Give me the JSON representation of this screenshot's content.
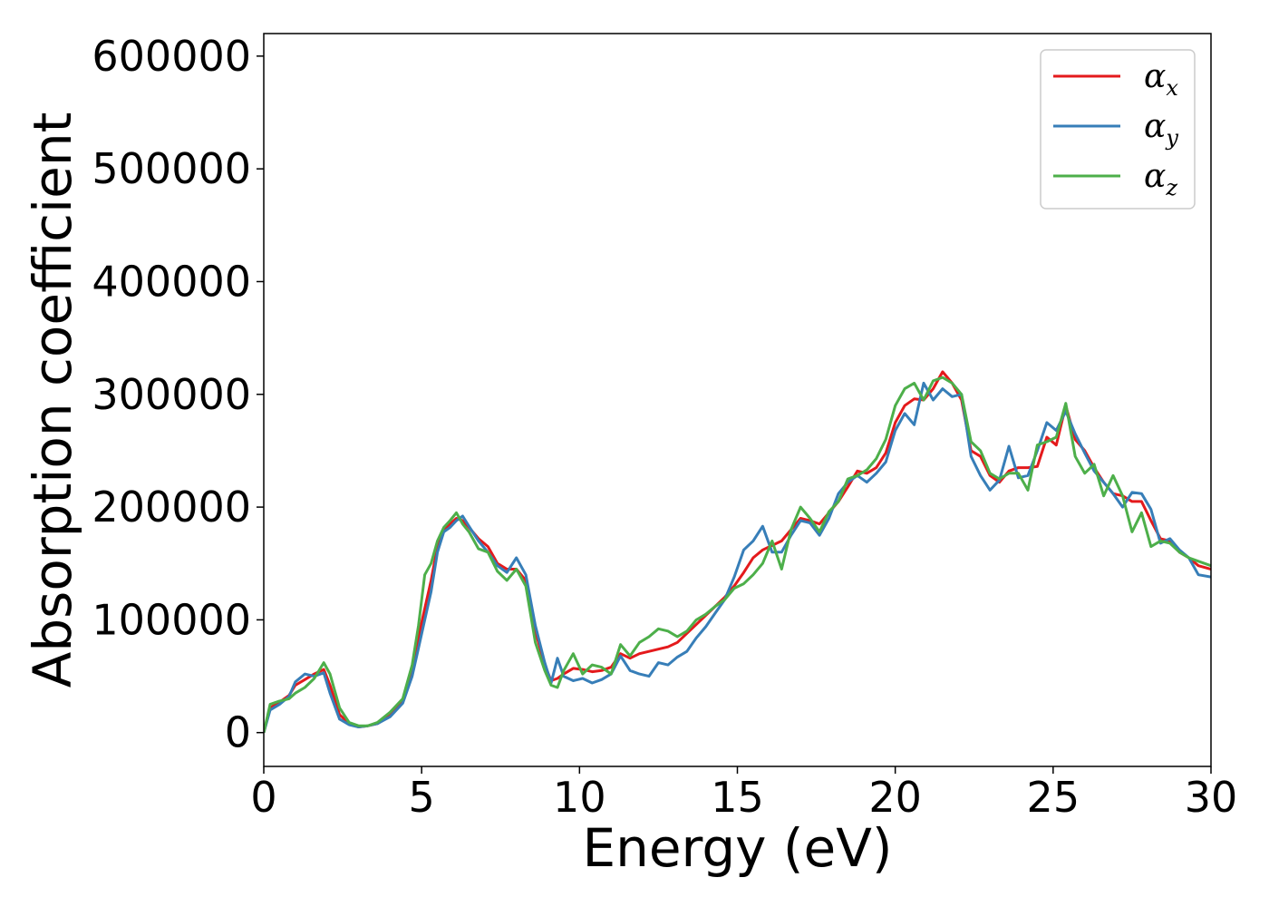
{
  "chart_data": {
    "type": "line",
    "title": "",
    "xlabel": "Energy (eV)",
    "ylabel": "Absorption coefficient",
    "xlim": [
      0,
      30
    ],
    "ylim": [
      -30000,
      620000
    ],
    "xticks": [
      0,
      5,
      10,
      15,
      20,
      25,
      30
    ],
    "xtick_labels": [
      "0",
      "5",
      "10",
      "15",
      "20",
      "25",
      "30"
    ],
    "yticks": [
      0,
      100000,
      200000,
      300000,
      400000,
      500000,
      600000
    ],
    "ytick_labels": [
      "0",
      "100000",
      "200000",
      "300000",
      "400000",
      "500000",
      "600000"
    ],
    "grid": false,
    "legend_position": "top-right",
    "series": [
      {
        "name": "αx",
        "name_base": "α",
        "name_sub": "x",
        "color": "#e41a1c",
        "x": [
          0,
          0.2,
          0.5,
          0.8,
          1.0,
          1.3,
          1.6,
          1.9,
          2.1,
          2.4,
          2.7,
          3.0,
          3.3,
          3.6,
          4.0,
          4.4,
          4.7,
          4.9,
          5.1,
          5.3,
          5.5,
          5.7,
          5.9,
          6.1,
          6.3,
          6.5,
          6.8,
          7.1,
          7.4,
          7.7,
          8.0,
          8.3,
          8.6,
          8.9,
          9.1,
          9.3,
          9.5,
          9.8,
          10.1,
          10.4,
          10.7,
          11.0,
          11.3,
          11.6,
          11.9,
          12.2,
          12.5,
          12.8,
          13.1,
          13.4,
          13.7,
          14.0,
          14.3,
          14.6,
          14.9,
          15.2,
          15.5,
          15.8,
          16.1,
          16.4,
          16.7,
          17.0,
          17.3,
          17.6,
          17.9,
          18.2,
          18.5,
          18.8,
          19.1,
          19.4,
          19.7,
          20.0,
          20.3,
          20.6,
          20.9,
          21.2,
          21.5,
          21.8,
          22.1,
          22.4,
          22.7,
          23.0,
          23.3,
          23.6,
          23.9,
          24.2,
          24.5,
          24.8,
          25.1,
          25.4,
          25.7,
          26.0,
          26.3,
          26.6,
          26.9,
          27.2,
          27.5,
          27.8,
          28.1,
          28.4,
          28.7,
          29.0,
          29.3,
          29.6,
          30.0
        ],
        "y": [
          0,
          22000,
          27000,
          33000,
          42000,
          47000,
          52000,
          56000,
          42000,
          16000,
          8000,
          5000,
          6000,
          8000,
          15000,
          28000,
          55000,
          85000,
          110000,
          135000,
          165000,
          180000,
          185000,
          190000,
          188000,
          182000,
          172000,
          165000,
          150000,
          145000,
          145000,
          135000,
          90000,
          60000,
          46000,
          48000,
          52000,
          57000,
          56000,
          54000,
          55000,
          58000,
          70000,
          66000,
          70000,
          72000,
          74000,
          76000,
          80000,
          88000,
          96000,
          104000,
          112000,
          120000,
          130000,
          142000,
          155000,
          162000,
          166000,
          170000,
          180000,
          190000,
          188000,
          185000,
          195000,
          205000,
          218000,
          232000,
          230000,
          235000,
          248000,
          275000,
          290000,
          296000,
          295000,
          305000,
          320000,
          310000,
          295000,
          250000,
          245000,
          228000,
          222000,
          232000,
          235000,
          235000,
          236000,
          262000,
          255000,
          290000,
          260000,
          250000,
          235000,
          222000,
          212000,
          210000,
          205000,
          205000,
          188000,
          172000,
          170000,
          160000,
          155000,
          148000,
          145000
        ]
      },
      {
        "name": "αy",
        "name_base": "α",
        "name_sub": "y",
        "color": "#377eb8",
        "x": [
          0,
          0.2,
          0.5,
          0.8,
          1.0,
          1.3,
          1.6,
          1.9,
          2.1,
          2.4,
          2.7,
          3.0,
          3.3,
          3.6,
          4.0,
          4.4,
          4.7,
          4.9,
          5.1,
          5.3,
          5.5,
          5.7,
          5.9,
          6.1,
          6.3,
          6.5,
          6.8,
          7.1,
          7.4,
          7.7,
          8.0,
          8.3,
          8.6,
          8.9,
          9.1,
          9.3,
          9.5,
          9.8,
          10.1,
          10.4,
          10.7,
          11.0,
          11.3,
          11.6,
          11.9,
          12.2,
          12.5,
          12.8,
          13.1,
          13.4,
          13.7,
          14.0,
          14.3,
          14.6,
          14.9,
          15.2,
          15.5,
          15.8,
          16.1,
          16.4,
          16.7,
          17.0,
          17.3,
          17.6,
          17.9,
          18.2,
          18.5,
          18.8,
          19.1,
          19.4,
          19.7,
          20.0,
          20.3,
          20.6,
          20.9,
          21.2,
          21.5,
          21.8,
          22.1,
          22.4,
          22.7,
          23.0,
          23.3,
          23.6,
          23.9,
          24.2,
          24.5,
          24.8,
          25.1,
          25.4,
          25.7,
          26.0,
          26.3,
          26.6,
          26.9,
          27.2,
          27.5,
          27.8,
          28.1,
          28.4,
          28.7,
          29.0,
          29.3,
          29.6,
          30.0
        ],
        "y": [
          0,
          20000,
          25000,
          32000,
          45000,
          52000,
          50000,
          53000,
          35000,
          12000,
          7000,
          5000,
          6000,
          8000,
          14000,
          26000,
          50000,
          75000,
          100000,
          125000,
          160000,
          178000,
          182000,
          188000,
          192000,
          183000,
          170000,
          160000,
          148000,
          142000,
          155000,
          140000,
          95000,
          62000,
          44000,
          66000,
          50000,
          46000,
          48000,
          44000,
          47000,
          52000,
          68000,
          55000,
          52000,
          50000,
          62000,
          60000,
          67000,
          72000,
          84000,
          94000,
          106000,
          118000,
          138000,
          162000,
          170000,
          183000,
          160000,
          160000,
          175000,
          188000,
          186000,
          175000,
          190000,
          212000,
          222000,
          228000,
          222000,
          230000,
          240000,
          268000,
          283000,
          273000,
          310000,
          295000,
          305000,
          298000,
          300000,
          245000,
          228000,
          215000,
          224000,
          254000,
          226000,
          228000,
          250000,
          275000,
          268000,
          285000,
          265000,
          248000,
          232000,
          222000,
          212000,
          200000,
          213000,
          212000,
          198000,
          168000,
          172000,
          162000,
          155000,
          140000,
          138000
        ]
      },
      {
        "name": "αz",
        "name_base": "α",
        "name_sub": "z",
        "color": "#4daf4a",
        "x": [
          0,
          0.2,
          0.5,
          0.8,
          1.0,
          1.3,
          1.6,
          1.9,
          2.1,
          2.4,
          2.7,
          3.0,
          3.3,
          3.6,
          4.0,
          4.4,
          4.7,
          4.9,
          5.1,
          5.3,
          5.5,
          5.7,
          5.9,
          6.1,
          6.3,
          6.5,
          6.8,
          7.1,
          7.4,
          7.7,
          8.0,
          8.3,
          8.6,
          8.9,
          9.1,
          9.3,
          9.5,
          9.8,
          10.1,
          10.4,
          10.7,
          11.0,
          11.3,
          11.6,
          11.9,
          12.2,
          12.5,
          12.8,
          13.1,
          13.4,
          13.7,
          14.0,
          14.3,
          14.6,
          14.9,
          15.2,
          15.5,
          15.8,
          16.1,
          16.4,
          16.7,
          17.0,
          17.3,
          17.6,
          17.9,
          18.2,
          18.5,
          18.8,
          19.1,
          19.4,
          19.7,
          20.0,
          20.3,
          20.6,
          20.9,
          21.2,
          21.5,
          21.8,
          22.1,
          22.4,
          22.7,
          23.0,
          23.3,
          23.6,
          23.9,
          24.2,
          24.5,
          24.8,
          25.1,
          25.4,
          25.7,
          26.0,
          26.3,
          26.6,
          26.9,
          27.2,
          27.5,
          27.8,
          28.1,
          28.4,
          28.7,
          29.0,
          29.3,
          29.6,
          30.0
        ],
        "y": [
          0,
          25000,
          28000,
          30000,
          35000,
          40000,
          48000,
          62000,
          52000,
          22000,
          9000,
          6000,
          6000,
          9000,
          18000,
          30000,
          60000,
          95000,
          140000,
          150000,
          170000,
          182000,
          188000,
          195000,
          185000,
          178000,
          163000,
          160000,
          143000,
          135000,
          145000,
          130000,
          80000,
          55000,
          42000,
          40000,
          55000,
          70000,
          52000,
          60000,
          58000,
          52000,
          78000,
          68000,
          80000,
          85000,
          92000,
          90000,
          85000,
          90000,
          100000,
          105000,
          112000,
          118000,
          128000,
          132000,
          140000,
          150000,
          170000,
          145000,
          180000,
          200000,
          190000,
          178000,
          196000,
          205000,
          225000,
          228000,
          233000,
          243000,
          260000,
          290000,
          305000,
          310000,
          295000,
          312000,
          315000,
          310000,
          300000,
          258000,
          250000,
          230000,
          225000,
          230000,
          230000,
          215000,
          255000,
          258000,
          262000,
          292000,
          245000,
          230000,
          238000,
          210000,
          228000,
          210000,
          178000,
          195000,
          165000,
          170000,
          168000,
          160000,
          155000,
          152000,
          148000
        ]
      }
    ]
  }
}
